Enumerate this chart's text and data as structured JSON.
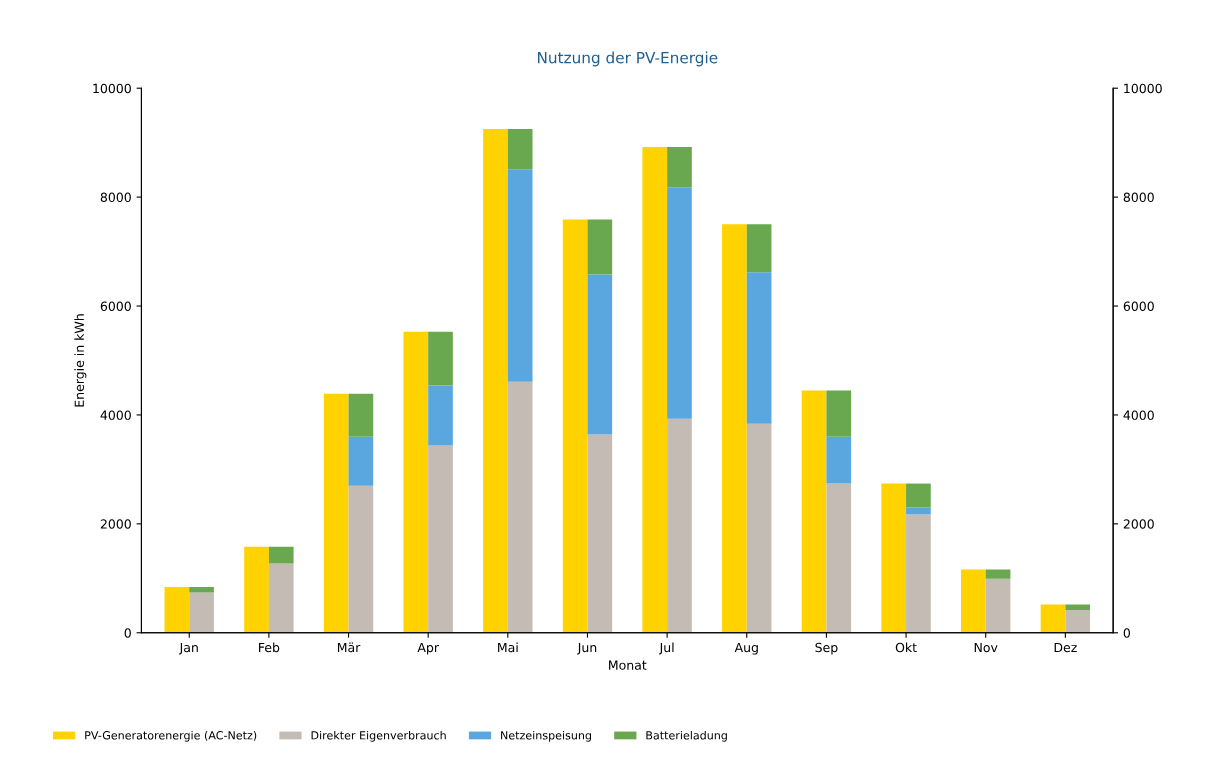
{
  "chart_data": {
    "type": "bar",
    "title": "Nutzung der PV-Energie",
    "xlabel": "Monat",
    "ylabel": "Energie in kWh",
    "categories": [
      "Jan",
      "Feb",
      "Mär",
      "Apr",
      "Mai",
      "Jun",
      "Jul",
      "Aug",
      "Sep",
      "Okt",
      "Nov",
      "Dez"
    ],
    "series": [
      {
        "name": "PV-Generatorenergie (AC-Netz)",
        "color": "#ffd200",
        "values": [
          840,
          1580,
          4390,
          5530,
          9250,
          7590,
          8920,
          7500,
          4450,
          2740,
          1160,
          520
        ]
      },
      {
        "name": "Direkter Eigenverbrauch",
        "color": "#c4bcb4",
        "values": [
          740,
          1270,
          2700,
          3440,
          4610,
          3640,
          3930,
          3840,
          2740,
          2170,
          990,
          420
        ],
        "base": [
          0,
          0,
          0,
          0,
          0,
          0,
          0,
          0,
          0,
          0,
          0,
          0
        ]
      },
      {
        "name": "Netzeinspeisung",
        "color": "#5aa7e0",
        "values": [
          null,
          null,
          900,
          1100,
          3900,
          2940,
          4250,
          2780,
          860,
          130,
          null,
          null
        ],
        "base": [
          null,
          null,
          2700,
          3440,
          4610,
          3640,
          3930,
          3840,
          2740,
          2170,
          null,
          null
        ]
      },
      {
        "name": "Batterieladung",
        "color": "#6aa84f",
        "values": [
          100,
          310,
          790,
          990,
          740,
          1010,
          740,
          880,
          850,
          440,
          170,
          100
        ],
        "base": [
          740,
          1270,
          3600,
          4540,
          8510,
          6580,
          8180,
          6620,
          3600,
          2300,
          990,
          420
        ]
      }
    ],
    "ylim": [
      0,
      10000
    ],
    "yticks": [
      0,
      2000,
      4000,
      6000,
      8000,
      10000
    ],
    "y2lim": [
      0,
      10000
    ],
    "y2ticks": [
      0,
      2000,
      4000,
      6000,
      8000,
      10000
    ],
    "grid": false,
    "legend": "bottom"
  }
}
